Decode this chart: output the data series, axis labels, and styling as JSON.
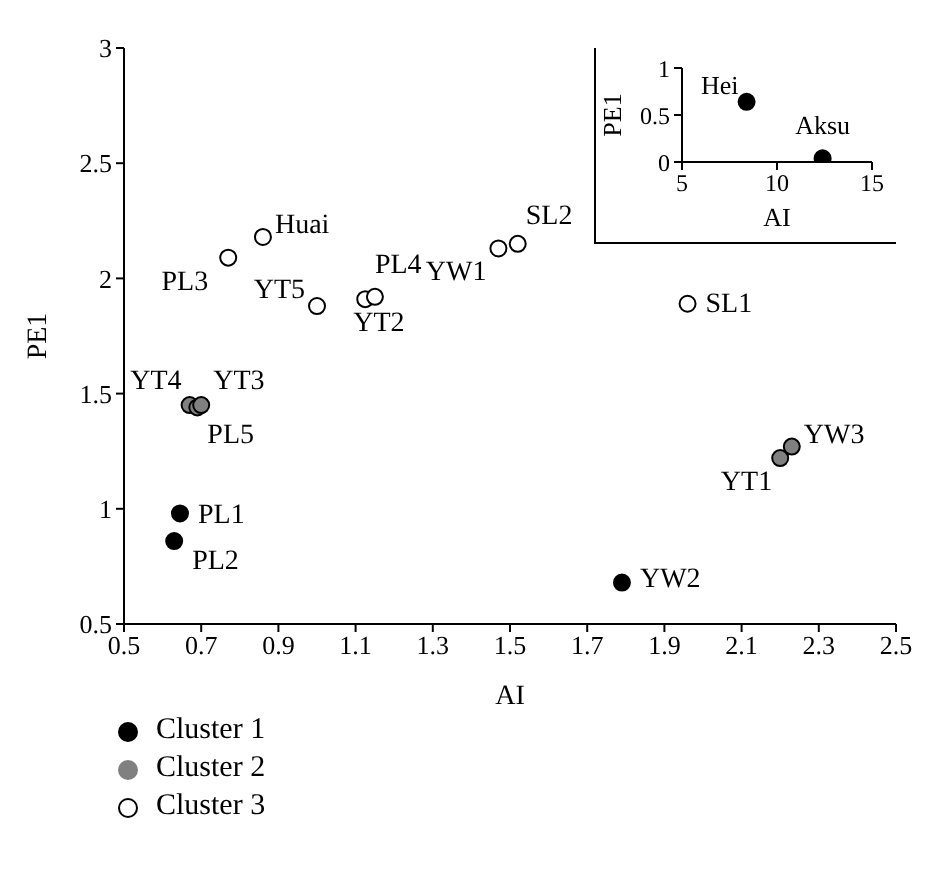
{
  "chart_data": [
    {
      "type": "scatter",
      "xlabel": "AI",
      "ylabel": "PE1",
      "xlim": [
        0.5,
        2.5
      ],
      "xticks": [
        0.5,
        0.7,
        0.9,
        1.1,
        1.3,
        1.5,
        1.7,
        1.9,
        2.1,
        2.3,
        2.5
      ],
      "ylim": [
        0.5,
        3
      ],
      "yticks": [
        0.5,
        1,
        1.5,
        2,
        2.5,
        3
      ],
      "marker": "circle",
      "legend": "bottom left",
      "grid": false,
      "series": [
        {
          "name": "Cluster 1",
          "color": "#000000",
          "x": [
            0.645,
            0.63,
            1.79
          ],
          "values": [
            0.98,
            0.86,
            0.68
          ]
        },
        {
          "name": "Cluster 2",
          "color": "#808080",
          "x": [
            0.67,
            0.69,
            0.7,
            2.2,
            2.23
          ],
          "values": [
            1.45,
            1.44,
            1.45,
            1.22,
            1.27
          ]
        },
        {
          "name": "Cluster 3",
          "color": "#ffffff",
          "x": [
            0.77,
            0.86,
            1.0,
            1.125,
            1.15,
            1.47,
            1.52,
            1.96
          ],
          "values": [
            2.09,
            2.18,
            1.88,
            1.91,
            1.92,
            2.13,
            2.15,
            1.89
          ]
        }
      ],
      "annotations": [
        {
          "text": "PL1",
          "x": 0.645,
          "y": 0.98
        },
        {
          "text": "PL2",
          "x": 0.63,
          "y": 0.86
        },
        {
          "text": "YW2",
          "x": 1.79,
          "y": 0.68
        },
        {
          "text": "YT4",
          "x": 0.67,
          "y": 1.45
        },
        {
          "text": "PL5",
          "x": 0.69,
          "y": 1.44
        },
        {
          "text": "YT3",
          "x": 0.7,
          "y": 1.45
        },
        {
          "text": "YT1",
          "x": 2.2,
          "y": 1.22
        },
        {
          "text": "YW3",
          "x": 2.23,
          "y": 1.27
        },
        {
          "text": "PL3",
          "x": 0.77,
          "y": 2.09
        },
        {
          "text": "Huai",
          "x": 0.86,
          "y": 2.18
        },
        {
          "text": "YT5",
          "x": 1.0,
          "y": 1.88
        },
        {
          "text": "YT2",
          "x": 1.125,
          "y": 1.91
        },
        {
          "text": "PL4",
          "x": 1.15,
          "y": 1.92
        },
        {
          "text": "YW1",
          "x": 1.47,
          "y": 2.13
        },
        {
          "text": "SL2",
          "x": 1.52,
          "y": 2.15
        },
        {
          "text": "SL1",
          "x": 1.96,
          "y": 1.89
        }
      ]
    },
    {
      "type": "scatter",
      "xlabel": "AI",
      "ylabel": "PE1",
      "xlim": [
        5,
        15
      ],
      "xticks": [
        5,
        10,
        15
      ],
      "ylim": [
        0,
        1
      ],
      "yticks": [
        0,
        0.5,
        1
      ],
      "marker": "circle",
      "grid": false,
      "series": [
        {
          "color": "#000000",
          "x": [
            8.4,
            12.4
          ],
          "values": [
            0.64,
            0.04
          ]
        }
      ],
      "annotations": [
        {
          "text": "Hei",
          "x": 8.4,
          "y": 0.64
        },
        {
          "text": "Aksu",
          "x": 12.4,
          "y": 0.04
        }
      ]
    }
  ]
}
